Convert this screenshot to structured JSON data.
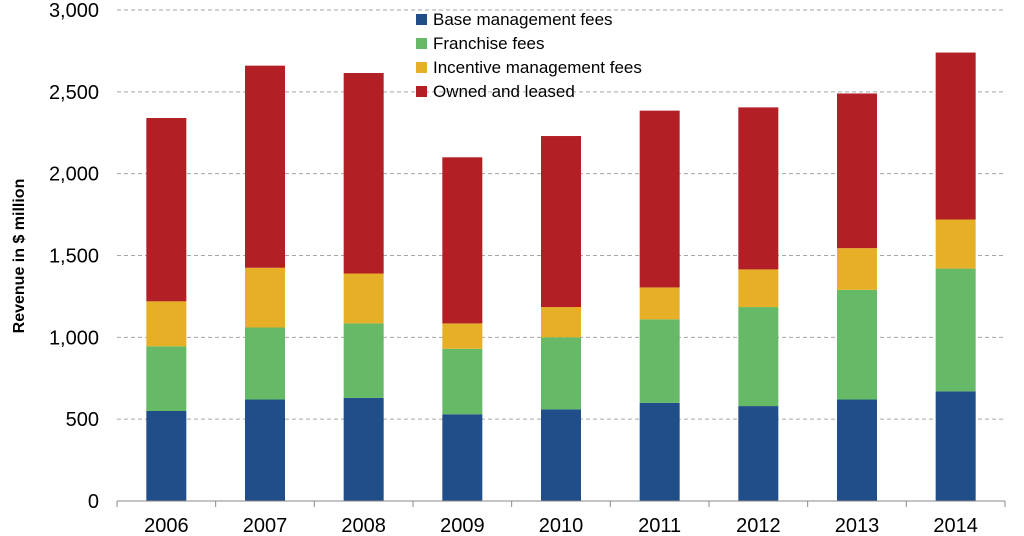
{
  "chart_data": {
    "type": "bar",
    "stacked": true,
    "title": "",
    "xlabel": "",
    "ylabel": "Revenue in $ million",
    "ylim": [
      0,
      3000
    ],
    "yticks": [
      0,
      500,
      1000,
      1500,
      2000,
      2500,
      3000
    ],
    "ytick_labels": [
      "0",
      "500",
      "1,000",
      "1,500",
      "2,000",
      "2,500",
      "3,000"
    ],
    "grid": "horizontal dashed",
    "legend": "top-center",
    "categories": [
      "2006",
      "2007",
      "2008",
      "2009",
      "2010",
      "2011",
      "2012",
      "2013",
      "2014"
    ],
    "series": [
      {
        "name": "Base management fees",
        "color": "#1f4e89",
        "values": [
          550,
          620,
          630,
          530,
          560,
          600,
          580,
          620,
          670
        ]
      },
      {
        "name": "Franchise fees",
        "color": "#66b966",
        "values": [
          395,
          440,
          455,
          400,
          440,
          510,
          605,
          670,
          750
        ]
      },
      {
        "name": "Incentive management fees",
        "color": "#e6af28",
        "values": [
          275,
          365,
          305,
          155,
          185,
          195,
          230,
          255,
          300
        ]
      },
      {
        "name": "Owned and leased",
        "color": "#b21f24",
        "values": [
          1120,
          1235,
          1225,
          1015,
          1045,
          1080,
          990,
          945,
          1020
        ]
      }
    ]
  }
}
